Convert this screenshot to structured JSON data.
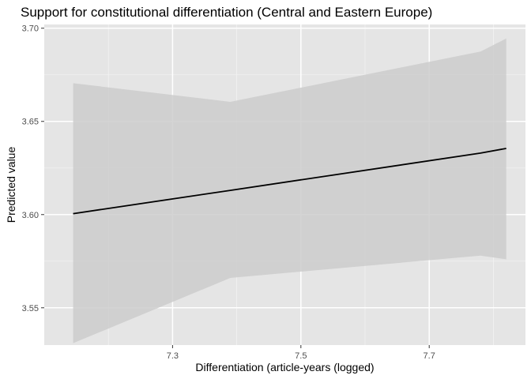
{
  "chart_data": {
    "type": "line",
    "title": "Support for constitutional differentiation (Central and Eastern Europe)",
    "xlabel": "Differentiation (article-years (logged)",
    "ylabel": "Predicted value",
    "xlim": [
      7.1,
      7.85
    ],
    "ylim": [
      3.53,
      3.702
    ],
    "x_ticks": [
      7.3,
      7.5,
      7.7
    ],
    "x_tick_labels": [
      "7.3",
      "7.5",
      "7.7"
    ],
    "y_ticks": [
      3.55,
      3.6,
      3.65,
      3.7
    ],
    "y_tick_labels": [
      "3.55",
      "3.60",
      "3.65",
      "3.70"
    ],
    "grid": true,
    "background": "#e5e5e5",
    "series": [
      {
        "line_color": "#000000",
        "band_color": "#cccccc",
        "x": [
          7.145,
          7.39,
          7.78,
          7.82
        ],
        "fit": [
          3.6005,
          3.613,
          3.633,
          3.6355
        ],
        "upper": [
          3.6705,
          3.6605,
          3.6875,
          3.6945
        ],
        "lower": [
          3.531,
          3.566,
          3.578,
          3.576
        ]
      }
    ]
  }
}
